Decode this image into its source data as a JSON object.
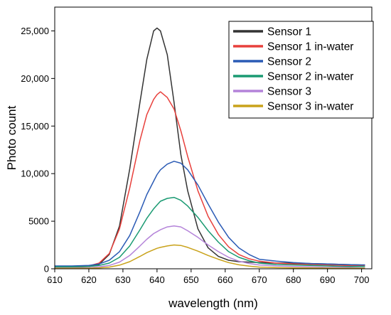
{
  "chart_data": {
    "type": "line",
    "xlabel": "wavelength (nm)",
    "ylabel": "Photo count",
    "xlim": [
      610,
      703
    ],
    "ylim": [
      0,
      27500
    ],
    "xticks": [
      610,
      620,
      630,
      640,
      650,
      660,
      670,
      680,
      690,
      700
    ],
    "xtick_labels": [
      "610",
      "620",
      "630",
      "640",
      "650",
      "660",
      "670",
      "680",
      "690",
      "700"
    ],
    "yticks": [
      0,
      5000,
      10000,
      15000,
      20000,
      25000
    ],
    "ytick_labels": [
      "0",
      "5000",
      "10,000",
      "15,000",
      "20,000",
      "25,000"
    ],
    "grid": false,
    "legend_position": "top-right",
    "x": [
      610,
      615,
      620,
      623,
      626,
      629,
      632,
      635,
      637,
      639,
      640,
      641,
      643,
      645,
      647,
      649,
      652,
      655,
      658,
      661,
      664,
      667,
      670,
      675,
      680,
      685,
      690,
      695,
      700,
      701
    ],
    "series": [
      {
        "name": "Sensor 1",
        "color": "#333333",
        "values": [
          100,
          150,
          250,
          450,
          1500,
          4500,
          10500,
          17500,
          22000,
          25000,
          25300,
          25000,
          22500,
          17500,
          12000,
          8200,
          4200,
          2200,
          1300,
          900,
          750,
          700,
          650,
          600,
          600,
          550,
          500,
          450,
          400,
          400
        ]
      },
      {
        "name": "Sensor 1 in-water",
        "color": "#e8403c",
        "values": [
          150,
          200,
          300,
          600,
          1600,
          4200,
          8500,
          13500,
          16200,
          17800,
          18300,
          18600,
          18000,
          16800,
          14500,
          11800,
          8200,
          5500,
          3600,
          2300,
          1500,
          1050,
          800,
          600,
          500,
          450,
          400,
          350,
          300,
          300
        ]
      },
      {
        "name": "Sensor 2",
        "color": "#2b5bb5",
        "values": [
          300,
          300,
          350,
          500,
          900,
          1800,
          3500,
          6000,
          7800,
          9200,
          9900,
          10400,
          11000,
          11300,
          11100,
          10400,
          8800,
          6800,
          4900,
          3300,
          2200,
          1500,
          1000,
          800,
          650,
          550,
          500,
          450,
          400,
          400
        ]
      },
      {
        "name": "Sensor 2 in-water",
        "color": "#1a9a72",
        "values": [
          200,
          200,
          250,
          350,
          600,
          1200,
          2400,
          4100,
          5300,
          6300,
          6700,
          7100,
          7400,
          7500,
          7200,
          6600,
          5400,
          4000,
          2800,
          1800,
          1200,
          850,
          600,
          450,
          400,
          350,
          300,
          250,
          250,
          250
        ]
      },
      {
        "name": "Sensor 3",
        "color": "#b483d9",
        "values": [
          100,
          100,
          120,
          200,
          350,
          700,
          1400,
          2400,
          3100,
          3700,
          3900,
          4100,
          4400,
          4500,
          4400,
          4000,
          3300,
          2500,
          1800,
          1200,
          800,
          550,
          400,
          300,
          250,
          200,
          150,
          150,
          100,
          100
        ]
      },
      {
        "name": "Sensor 3 in-water",
        "color": "#c9a21a",
        "values": [
          50,
          50,
          60,
          100,
          180,
          380,
          750,
          1300,
          1700,
          2000,
          2150,
          2250,
          2400,
          2500,
          2450,
          2250,
          1850,
          1400,
          1000,
          650,
          420,
          280,
          180,
          120,
          90,
          80,
          70,
          60,
          50,
          50
        ]
      }
    ]
  }
}
